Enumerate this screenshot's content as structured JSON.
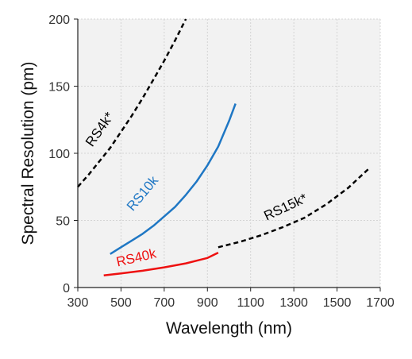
{
  "chart_data": {
    "type": "line",
    "title": "",
    "xlabel": "Wavelength (nm)",
    "ylabel": "Spectral Resolution (pm)",
    "xlim": [
      300,
      1700
    ],
    "ylim": [
      0,
      200
    ],
    "xticks": [
      300,
      500,
      700,
      900,
      1100,
      1300,
      1500,
      1700
    ],
    "yticks": [
      0,
      50,
      100,
      150,
      200
    ],
    "grid": true,
    "legend": "none",
    "series": [
      {
        "name": "RS4k*",
        "color": "#000000",
        "style": "dashed",
        "x": [
          300,
          350,
          400,
          450,
          500,
          550,
          600,
          650,
          700,
          750,
          800
        ],
        "y": [
          75,
          84,
          94,
          104,
          116,
          128,
          141,
          155,
          169,
          184,
          200
        ]
      },
      {
        "name": "RS10k",
        "color": "#1f77c4",
        "style": "solid",
        "x": [
          450,
          500,
          550,
          600,
          650,
          700,
          750,
          800,
          850,
          900,
          950,
          1000,
          1030
        ],
        "y": [
          25,
          30,
          35,
          40,
          46,
          53,
          60,
          69,
          79,
          91,
          105,
          124,
          137
        ]
      },
      {
        "name": "RS40k",
        "color": "#ee1111",
        "style": "solid",
        "x": [
          420,
          500,
          600,
          700,
          800,
          900,
          950
        ],
        "y": [
          9,
          10.5,
          12.5,
          15,
          18,
          22,
          26
        ]
      },
      {
        "name": "RS15k*",
        "color": "#000000",
        "style": "dashed",
        "x": [
          950,
          1050,
          1150,
          1250,
          1350,
          1450,
          1550,
          1650
        ],
        "y": [
          30,
          34,
          39,
          45,
          52,
          62,
          74,
          89
        ]
      }
    ]
  }
}
